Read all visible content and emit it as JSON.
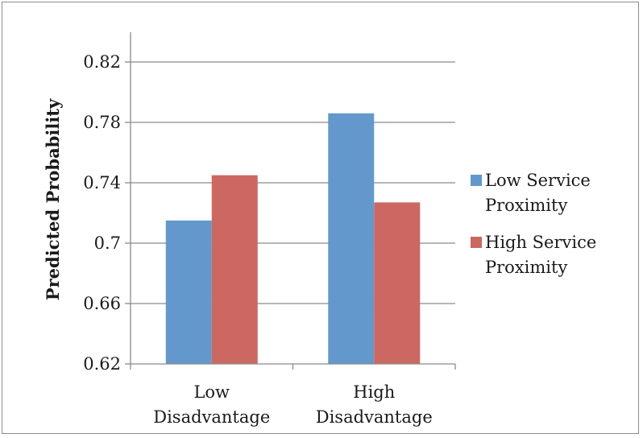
{
  "chart_data": {
    "type": "bar",
    "title": "",
    "xlabel": "",
    "ylabel": "Predicted Probability",
    "ylim": [
      0.62,
      0.82
    ],
    "yticks": [
      "0.62",
      "0.66",
      "0.7",
      "0.74",
      "0.78",
      "0.82"
    ],
    "ytick_values": [
      0.62,
      0.66,
      0.7,
      0.74,
      0.78,
      0.82
    ],
    "categories": [
      [
        "Low",
        "Disadvantage"
      ],
      [
        "High",
        "Disadvantage"
      ]
    ],
    "series": [
      {
        "name": [
          "Low Service",
          "Proximity"
        ],
        "values": [
          0.715,
          0.786
        ],
        "color": "#6398cc"
      },
      {
        "name": [
          "High Service",
          "Proximity"
        ],
        "values": [
          0.745,
          0.727
        ],
        "color": "#cc6761"
      }
    ],
    "grid": true,
    "legend": "right"
  }
}
